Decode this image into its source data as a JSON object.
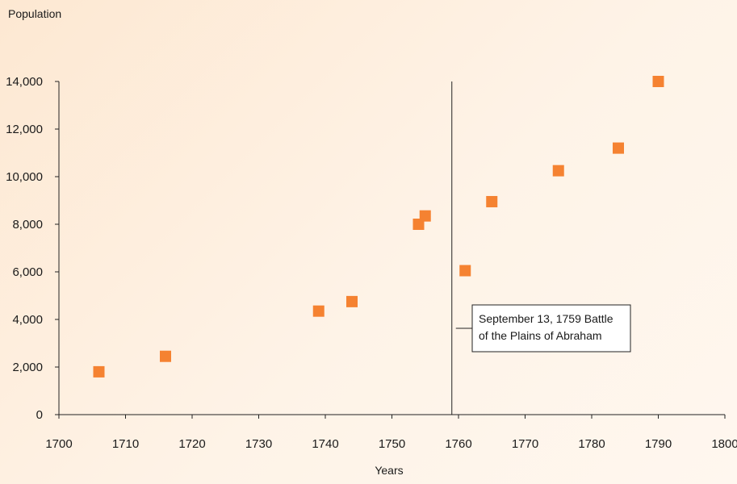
{
  "chart_data": {
    "type": "scatter",
    "title": "",
    "xlabel": "Years",
    "ylabel": "Population",
    "xlim": [
      1700,
      1800
    ],
    "ylim": [
      0,
      14000
    ],
    "xticks": [
      1700,
      1710,
      1720,
      1730,
      1740,
      1750,
      1760,
      1770,
      1780,
      1790,
      1800
    ],
    "yticks": [
      0,
      2000,
      4000,
      6000,
      8000,
      10000,
      12000,
      14000
    ],
    "ytick_labels": [
      "0",
      "2,000",
      "4,000",
      "6,000",
      "8,000",
      "10,000",
      "12,000",
      "14,000"
    ],
    "grid": false,
    "series": [
      {
        "color": "#f58231",
        "points": [
          {
            "x": 1706,
            "y": 1800
          },
          {
            "x": 1716,
            "y": 2450
          },
          {
            "x": 1739,
            "y": 4350
          },
          {
            "x": 1744,
            "y": 4750
          },
          {
            "x": 1754,
            "y": 8000
          },
          {
            "x": 1755,
            "y": 8350
          },
          {
            "x": 1761,
            "y": 6050
          },
          {
            "x": 1765,
            "y": 8950
          },
          {
            "x": 1775,
            "y": 10250
          },
          {
            "x": 1784,
            "y": 11200
          },
          {
            "x": 1790,
            "y": 14000
          }
        ]
      }
    ],
    "annotations": [
      {
        "type": "vertical-line",
        "x": 1759,
        "lines": [
          "September 13, 1759 Battle",
          "of the Plains of Abraham"
        ]
      }
    ]
  }
}
